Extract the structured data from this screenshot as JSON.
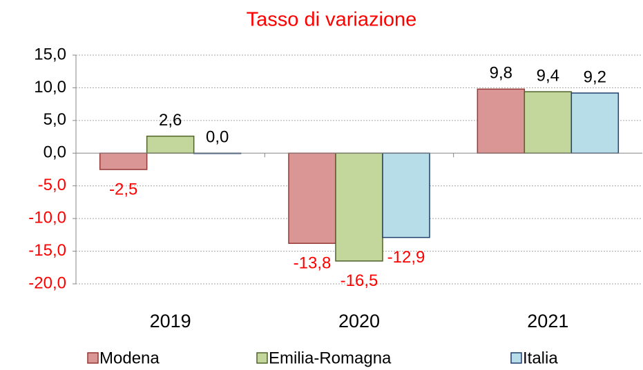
{
  "chart_data": {
    "type": "bar",
    "title": "Tasso di variazione",
    "categories": [
      "2019",
      "2020",
      "2021"
    ],
    "series": [
      {
        "name": "Modena",
        "color": "#d99694",
        "stroke": "#953735",
        "values": [
          -2.5,
          -13.8,
          9.8
        ],
        "value_labels": [
          "-2,5",
          "-13,8",
          "9,8"
        ]
      },
      {
        "name": "Emilia-Romagna",
        "color": "#c3d69b",
        "stroke": "#4f6228",
        "values": [
          2.6,
          -16.5,
          9.4
        ],
        "value_labels": [
          "2,6",
          "-16,5",
          "9,4"
        ]
      },
      {
        "name": "Italia",
        "color": "#b7dde8",
        "stroke": "#1f3f6e",
        "values": [
          0.0,
          -12.9,
          9.2
        ],
        "value_labels": [
          "0,0",
          "-12,9",
          "9,2"
        ]
      }
    ],
    "ylim": [
      -20,
      15
    ],
    "yticks": [
      {
        "value": -20,
        "label": "-20,0"
      },
      {
        "value": -15,
        "label": "-15,0"
      },
      {
        "value": -10,
        "label": "-10,0"
      },
      {
        "value": -5,
        "label": "-5,0"
      },
      {
        "value": 0,
        "label": "0,0"
      },
      {
        "value": 5,
        "label": "5,0"
      },
      {
        "value": 10,
        "label": "10,0"
      },
      {
        "value": 15,
        "label": "15,0"
      }
    ],
    "grid": true,
    "legend": "bottom"
  }
}
